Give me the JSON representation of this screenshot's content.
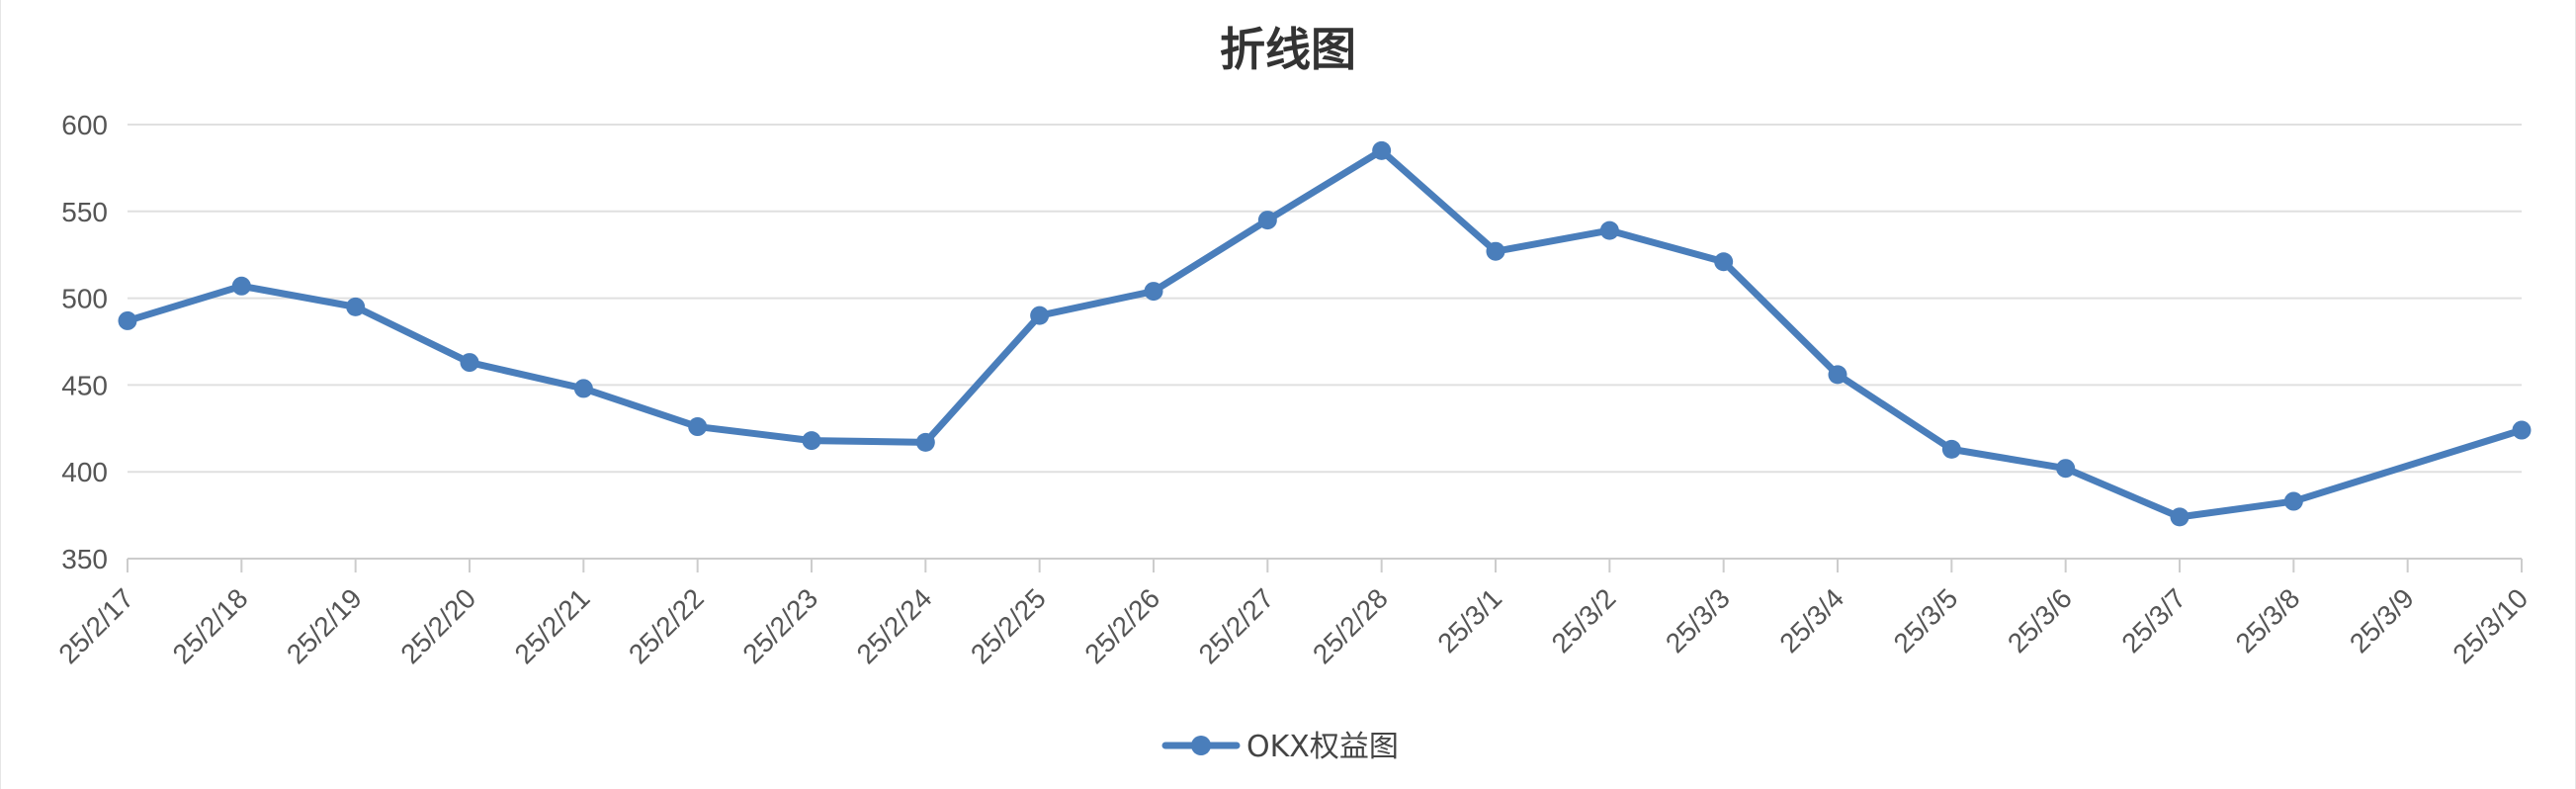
{
  "chart_data": {
    "type": "line",
    "title": "折线图",
    "xlabel": "",
    "ylabel": "",
    "ylim": [
      350,
      600
    ],
    "yticks": [
      350,
      400,
      450,
      500,
      550,
      600
    ],
    "grid": true,
    "legend_position": "bottom-center",
    "categories": [
      "25/2/17",
      "25/2/18",
      "25/2/19",
      "25/2/20",
      "25/2/21",
      "25/2/22",
      "25/2/23",
      "25/2/24",
      "25/2/25",
      "25/2/26",
      "25/2/27",
      "25/2/28",
      "25/3/1",
      "25/3/2",
      "25/3/3",
      "25/3/4",
      "25/3/5",
      "25/3/6",
      "25/3/7",
      "25/3/8",
      "25/3/9",
      "25/3/10"
    ],
    "series": [
      {
        "name": "OKX权益图",
        "color": "#4a7ebb",
        "values": [
          487,
          507,
          495,
          463,
          448,
          426,
          418,
          417,
          490,
          504,
          545,
          585,
          527,
          539,
          521,
          456,
          413,
          402,
          374,
          383,
          null,
          424
        ]
      }
    ]
  }
}
